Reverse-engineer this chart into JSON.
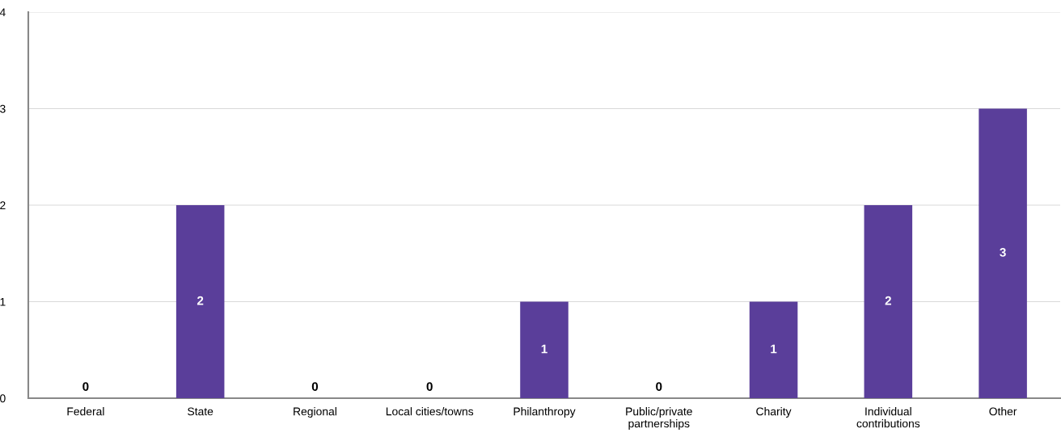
{
  "chart_data": {
    "type": "bar",
    "categories": [
      "Federal",
      "State",
      "Regional",
      "Local cities/towns",
      "Philanthropy",
      "Public/private\npartnerships",
      "Charity",
      "Individual\ncontributions",
      "Other"
    ],
    "values": [
      0,
      2,
      0,
      0,
      1,
      0,
      1,
      2,
      3
    ],
    "color": "#5a3e9a",
    "ylim": [
      0,
      4
    ],
    "yticks": [
      0,
      1,
      2,
      3,
      4
    ],
    "grid": "y",
    "data_labels": true
  }
}
